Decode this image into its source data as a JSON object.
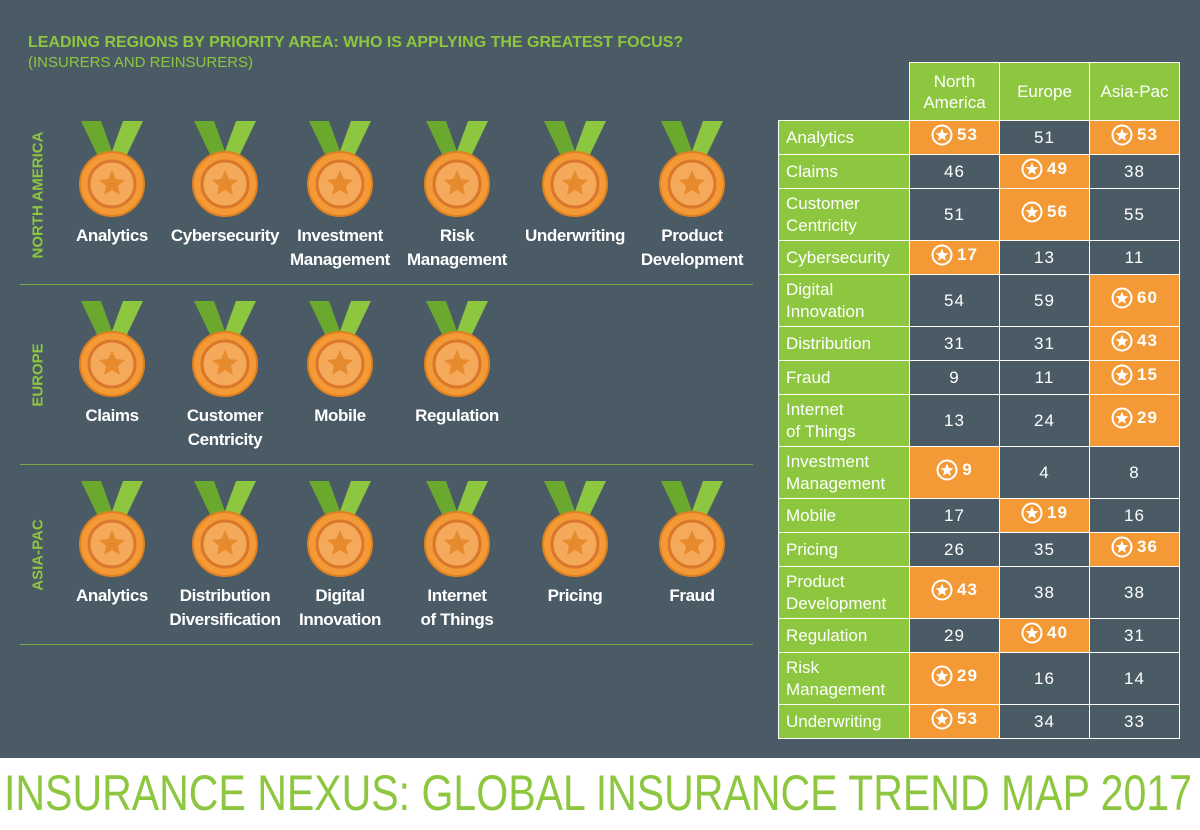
{
  "header": {
    "title": "LEADING REGIONS BY PRIORITY AREA: WHO IS APPLYING THE GREATEST FOCUS?",
    "subtitle": "(INSURERS AND REINSURERS)"
  },
  "regions": [
    {
      "name": "NORTH AMERICA",
      "medals": [
        "Analytics",
        "Cybersecurity",
        "Investment\nManagement",
        "Risk\nManagement",
        "Underwriting",
        "Product\nDevelopment"
      ]
    },
    {
      "name": "EUROPE",
      "medals": [
        "Claims",
        "Customer\nCentricity",
        "Mobile",
        "Regulation"
      ]
    },
    {
      "name": "ASIA-PAC",
      "medals": [
        "Analytics",
        "Distribution\nDiversification",
        "Digital\nInnovation",
        "Internet\nof Things",
        "Pricing",
        "Fraud"
      ]
    }
  ],
  "table": {
    "columns": [
      "North\nAmerica",
      "Europe",
      "Asia-Pac"
    ],
    "rows": [
      {
        "label": "Analytics",
        "values": [
          53,
          51,
          53
        ],
        "leader": [
          true,
          false,
          true
        ]
      },
      {
        "label": "Claims",
        "values": [
          46,
          49,
          38
        ],
        "leader": [
          false,
          true,
          false
        ]
      },
      {
        "label": "Customer\nCentricity",
        "values": [
          51,
          56,
          55
        ],
        "leader": [
          false,
          true,
          false
        ]
      },
      {
        "label": "Cybersecurity",
        "values": [
          17,
          13,
          11
        ],
        "leader": [
          true,
          false,
          false
        ]
      },
      {
        "label": "Digital\nInnovation",
        "values": [
          54,
          59,
          60
        ],
        "leader": [
          false,
          false,
          true
        ]
      },
      {
        "label": "Distribution",
        "values": [
          31,
          31,
          43
        ],
        "leader": [
          false,
          false,
          true
        ]
      },
      {
        "label": "Fraud",
        "values": [
          9,
          11,
          15
        ],
        "leader": [
          false,
          false,
          true
        ]
      },
      {
        "label": "Internet\nof Things",
        "values": [
          13,
          24,
          29
        ],
        "leader": [
          false,
          false,
          true
        ]
      },
      {
        "label": "Investment\nManagement",
        "values": [
          9,
          4,
          8
        ],
        "leader": [
          true,
          false,
          false
        ]
      },
      {
        "label": "Mobile",
        "values": [
          17,
          19,
          16
        ],
        "leader": [
          false,
          true,
          false
        ]
      },
      {
        "label": "Pricing",
        "values": [
          26,
          35,
          36
        ],
        "leader": [
          false,
          false,
          true
        ]
      },
      {
        "label": "Product\nDevelopment",
        "values": [
          43,
          38,
          38
        ],
        "leader": [
          true,
          false,
          false
        ]
      },
      {
        "label": "Regulation",
        "values": [
          29,
          40,
          31
        ],
        "leader": [
          false,
          true,
          false
        ]
      },
      {
        "label": "Risk\nManagement",
        "values": [
          29,
          16,
          14
        ],
        "leader": [
          true,
          false,
          false
        ]
      },
      {
        "label": "Underwriting",
        "values": [
          53,
          34,
          33
        ],
        "leader": [
          true,
          false,
          false
        ]
      }
    ]
  },
  "footer": "INSURANCE NEXUS: GLOBAL INSURANCE TREND MAP 2017"
}
